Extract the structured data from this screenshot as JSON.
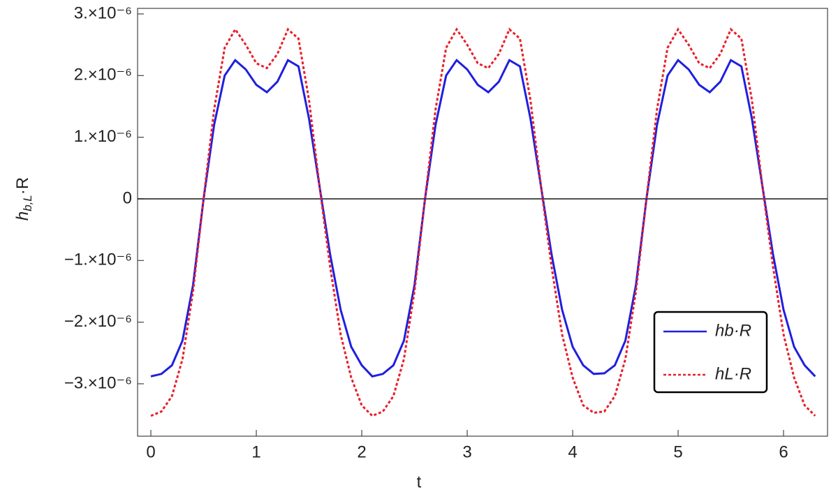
{
  "chart_data": {
    "type": "line",
    "xlabel": "t",
    "ylabel": {
      "main": "h",
      "sub": "b,L",
      "tail": "·R"
    },
    "x": [
      0,
      0.1,
      0.2,
      0.3,
      0.4,
      0.5,
      0.6,
      0.7,
      0.8,
      0.9,
      1.0,
      1.1,
      1.2,
      1.3,
      1.4,
      1.5,
      1.6,
      1.7,
      1.8,
      1.9,
      2.0,
      2.1,
      2.2,
      2.3,
      2.4,
      2.5,
      2.6,
      2.7,
      2.8,
      2.9,
      3.0,
      3.1,
      3.2,
      3.3,
      3.4,
      3.5,
      3.6,
      3.7,
      3.8,
      3.9,
      4.0,
      4.1,
      4.2,
      4.3,
      4.4,
      4.5,
      4.6,
      4.7,
      4.8,
      4.9,
      5.0,
      5.1,
      5.2,
      5.3,
      5.4,
      5.5,
      5.6,
      5.7,
      5.8,
      5.9,
      6.0,
      6.1,
      6.2,
      6.3
    ],
    "series": [
      {
        "name": "hb·R",
        "color": "#1f1fe0",
        "dash": false,
        "values": [
          -2.88e-06,
          -2.84e-06,
          -2.7e-06,
          -2.3e-06,
          -1.4e-06,
          0.0,
          1.2e-06,
          2e-06,
          2.25e-06,
          2.1e-06,
          1.85e-06,
          1.73e-06,
          1.9e-06,
          2.25e-06,
          2.15e-06,
          1.3e-06,
          2e-07,
          -9e-07,
          -1.8e-06,
          -2.4e-06,
          -2.7e-06,
          -2.88e-06,
          -2.84e-06,
          -2.7e-06,
          -2.3e-06,
          -1.4e-06,
          0.0,
          1.2e-06,
          2e-06,
          2.25e-06,
          2.1e-06,
          1.85e-06,
          1.73e-06,
          1.9e-06,
          2.25e-06,
          2.15e-06,
          1.3e-06,
          2e-07,
          -9e-07,
          -1.8e-06,
          -2.4e-06,
          -2.7e-06,
          -2.84e-06,
          -2.83e-06,
          -2.7e-06,
          -2.3e-06,
          -1.4e-06,
          0.0,
          1.2e-06,
          2e-06,
          2.25e-06,
          2.1e-06,
          1.85e-06,
          1.73e-06,
          1.9e-06,
          2.25e-06,
          2.15e-06,
          1.3e-06,
          2e-07,
          -9e-07,
          -1.8e-06,
          -2.4e-06,
          -2.7e-06,
          -2.88e-06
        ]
      },
      {
        "name": "hL·R",
        "color": "#e8202a",
        "dash": true,
        "values": [
          -3.52e-06,
          -3.45e-06,
          -3.2e-06,
          -2.6e-06,
          -1.5e-06,
          0.0,
          1.45e-06,
          2.45e-06,
          2.75e-06,
          2.5e-06,
          2.2e-06,
          2.12e-06,
          2.35e-06,
          2.75e-06,
          2.6e-06,
          1.6e-06,
          2e-07,
          -1.1e-06,
          -2.2e-06,
          -2.9e-06,
          -3.35e-06,
          -3.52e-06,
          -3.45e-06,
          -3.2e-06,
          -2.6e-06,
          -1.5e-06,
          0.0,
          1.45e-06,
          2.45e-06,
          2.75e-06,
          2.5e-06,
          2.2e-06,
          2.12e-06,
          2.35e-06,
          2.75e-06,
          2.6e-06,
          1.6e-06,
          2e-07,
          -1.1e-06,
          -2.2e-06,
          -2.9e-06,
          -3.35e-06,
          -3.47e-06,
          -3.45e-06,
          -3.2e-06,
          -2.6e-06,
          -1.5e-06,
          0.0,
          1.45e-06,
          2.45e-06,
          2.75e-06,
          2.5e-06,
          2.2e-06,
          2.12e-06,
          2.35e-06,
          2.75e-06,
          2.6e-06,
          1.6e-06,
          2e-07,
          -1.1e-06,
          -2.2e-06,
          -2.9e-06,
          -3.35e-06,
          -3.52e-06
        ]
      }
    ],
    "xlim": [
      -0.126,
      6.417
    ],
    "ylim": [
      -3.85e-06,
      3.09e-06
    ],
    "xticks": [
      0,
      1,
      2,
      3,
      4,
      5,
      6
    ],
    "yticks": [
      {
        "value": -3e-06,
        "label": "−3.×10⁻⁶"
      },
      {
        "value": -2e-06,
        "label": "−2.×10⁻⁶"
      },
      {
        "value": -1e-06,
        "label": "−1.×10⁻⁶"
      },
      0,
      {
        "value": 1e-06,
        "label": "1.×10⁻⁶"
      },
      {
        "value": 2e-06,
        "label": "2.×10⁻⁶"
      },
      {
        "value": 3e-06,
        "label": "3.×10⁻⁶"
      }
    ],
    "zero_line": true,
    "legend": "lower right"
  }
}
